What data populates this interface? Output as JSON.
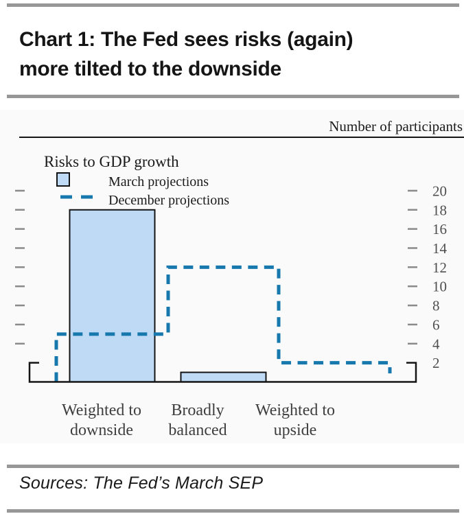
{
  "page": {
    "title_line1": "Chart 1: The Fed sees risks (again)",
    "title_line2": "more tilted to the downside",
    "source_note": "Sources: The Fed’s March SEP"
  },
  "colors": {
    "accent_blue": "#1778ad",
    "bar_fill": "#bedaf5",
    "rule_gray": "#979797",
    "axis_black": "#141414",
    "tick_gray": "#8a8a8a",
    "category_label_gray": "#3e3e3e",
    "value_label_gray": "#4f4f4f"
  },
  "chart_data": {
    "type": "bar",
    "title": "Risks to GDP growth",
    "axis_title": "Number of participants",
    "categories": [
      "Weighted to downside",
      "Broadly balanced",
      "Weighted to upside"
    ],
    "categories_wrapped": [
      [
        "Weighted to",
        "downside"
      ],
      [
        "Broadly",
        "balanced"
      ],
      [
        "Weighted to",
        "upside"
      ]
    ],
    "series": [
      {
        "name": "March projections",
        "style": "bar",
        "values": [
          18,
          1,
          0
        ]
      },
      {
        "name": "December projections",
        "style": "dashed-line",
        "values": [
          5,
          12,
          2
        ]
      }
    ],
    "ylim": [
      0,
      21
    ],
    "yticks": [
      2,
      4,
      6,
      8,
      10,
      12,
      14,
      16,
      18,
      20
    ],
    "ytick_label_side": "right",
    "legend_position": "top-left",
    "grid": false
  }
}
